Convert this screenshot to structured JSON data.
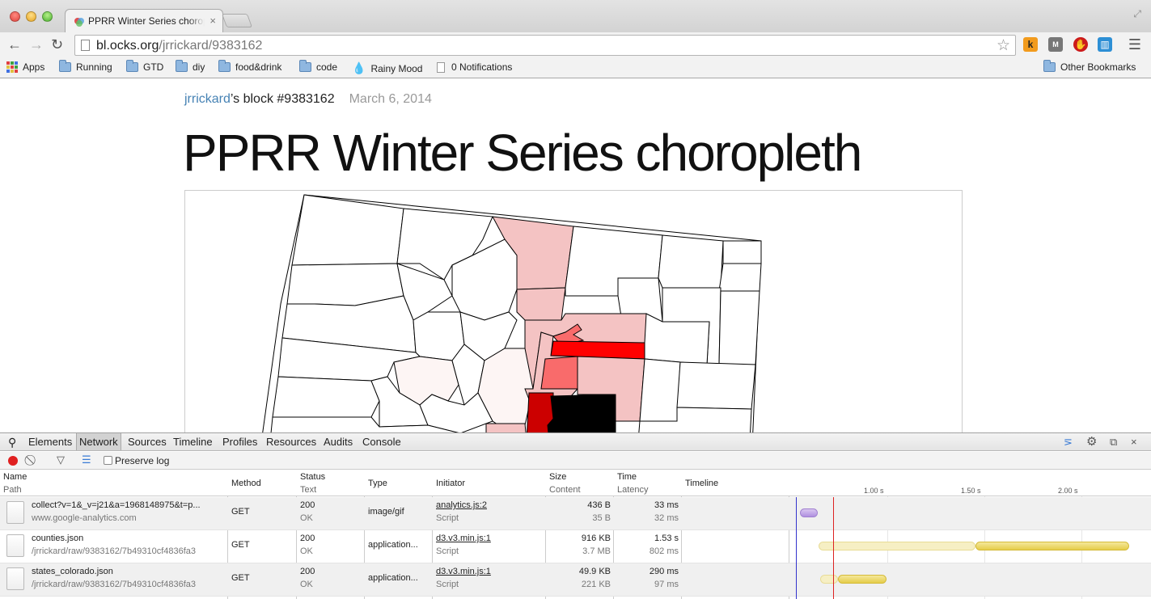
{
  "browser": {
    "tab_title": "PPRR Winter Series choropleth",
    "tab_close": "×",
    "url_host": "bl.ocks.org",
    "url_path": "/jrrickard/9383162",
    "bookmarks": [
      "Apps",
      "Running",
      "GTD",
      "diy",
      "food&drink",
      "code",
      "Rainy Mood",
      "0 Notifications"
    ],
    "other_bookmarks": "Other Bookmarks",
    "ext_k": "k",
    "ext_m": "M"
  },
  "page": {
    "user": "jrrickard",
    "block_label": "’s block #9383162",
    "date": "March 6, 2014",
    "title": "PPRR Winter Series choropleth"
  },
  "map_colors": {
    "white": "#ffffff",
    "lightest": "#fdf5f4",
    "light": "#f4c3c3",
    "medium": "#f96b6b",
    "strong": "#ff0000",
    "dark": "#cc0000",
    "black": "#000000"
  },
  "devtools": {
    "tabs": [
      "Elements",
      "Network",
      "Sources",
      "Timeline",
      "Profiles",
      "Resources",
      "Audits",
      "Console"
    ],
    "active_tab": "Network",
    "preserve_log": "Preserve log",
    "headers": {
      "name": "Name",
      "path": "Path",
      "method": "Method",
      "status": "Status",
      "text": "Text",
      "type": "Type",
      "initiator": "Initiator",
      "size": "Size",
      "content": "Content",
      "time": "Time",
      "latency": "Latency",
      "timeline": "Timeline"
    },
    "ticks": [
      "1.00 s",
      "1.50 s",
      "2.00 s"
    ],
    "rows": [
      {
        "name": "collect?v=1&_v=j21&a=1968148975&t=p...",
        "path": "www.google-analytics.com",
        "method": "GET",
        "status": "200",
        "status_text": "OK",
        "type": "image/gif",
        "initiator": "analytics.js:2",
        "initiator_type": "Script",
        "size": "436 B",
        "content": "35 B",
        "time": "33 ms",
        "latency": "32 ms"
      },
      {
        "name": "counties.json",
        "path": "/jrrickard/raw/9383162/7b49310cf4836fa3",
        "method": "GET",
        "status": "200",
        "status_text": "OK",
        "type": "application...",
        "initiator": "d3.v3.min.js:1",
        "initiator_type": "Script",
        "size": "916 KB",
        "content": "3.7 MB",
        "time": "1.53 s",
        "latency": "802 ms"
      },
      {
        "name": "states_colorado.json",
        "path": "/jrrickard/raw/9383162/7b49310cf4836fa3",
        "method": "GET",
        "status": "200",
        "status_text": "OK",
        "type": "application...",
        "initiator": "d3.v3.min.js:1",
        "initiator_type": "Script",
        "size": "49.9 KB",
        "content": "221 KB",
        "time": "290 ms",
        "latency": "97 ms"
      }
    ]
  }
}
